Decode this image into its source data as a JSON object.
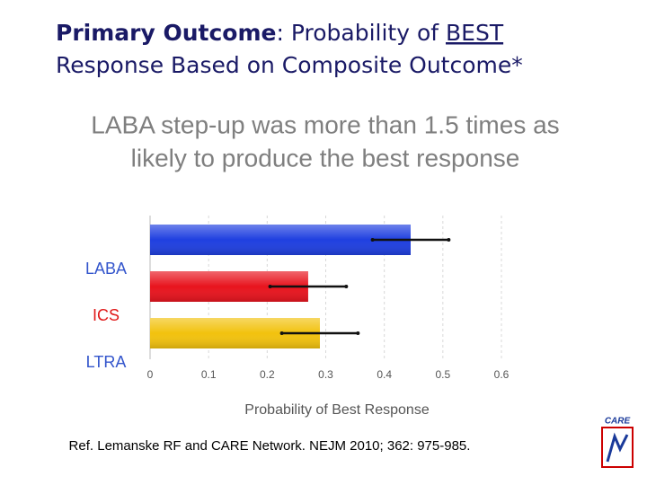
{
  "chart_data": {
    "type": "hbar",
    "title_parts": [
      "Primary Outcome",
      ": Probability of ",
      "BEST",
      "Response Based on Composite Outcome*"
    ],
    "subtitle_lines": [
      "LABA step-up was more than 1.5 times as",
      "likely to produce the best response"
    ],
    "categories": [
      "LABA",
      "ICS",
      "LTRA"
    ],
    "category_colors": [
      "#3355cc",
      "#e01818",
      "#3355cc"
    ],
    "values": [
      0.445,
      0.27,
      0.29
    ],
    "errors": [
      0.065,
      0.065,
      0.065
    ],
    "colors": [
      "#1f3fe0",
      "#e8141e",
      "#f2c20e"
    ],
    "xlabel": "Probability of Best Response",
    "xlim": [
      0,
      0.6
    ],
    "xticks": [
      0,
      0.1,
      0.2,
      0.3,
      0.4,
      0.5,
      0.6
    ],
    "grid": true,
    "footnote": "Ref. Lemanske RF and CARE Network. NEJM 2010; 362: 975-985.",
    "logo_text": "CARE"
  }
}
